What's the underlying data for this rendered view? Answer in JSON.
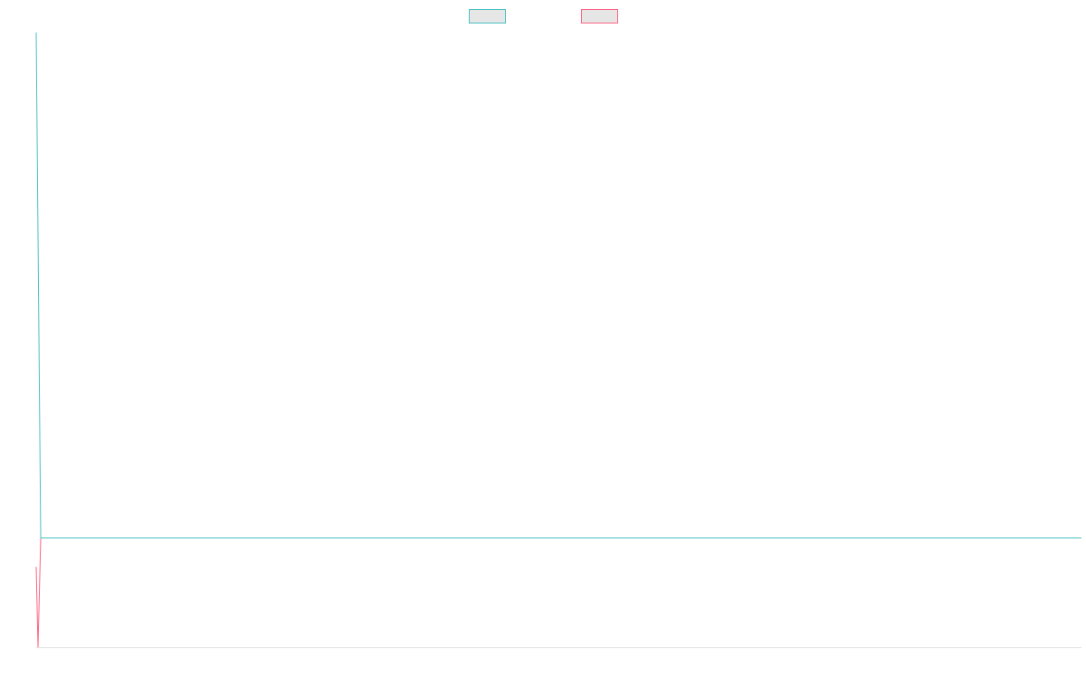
{
  "chart_data": {
    "type": "line",
    "series": [
      {
        "color": "#4bc0c0",
        "x": [
          0,
          1,
          231
        ],
        "values": [
          100,
          17.8,
          17.8
        ]
      },
      {
        "color": "#ff6384",
        "x": [
          0,
          0.4,
          1,
          231
        ],
        "values": [
          13.1,
          0,
          17.8,
          17.8
        ]
      }
    ],
    "xlim": [
      0,
      231
    ],
    "ylim": [
      0,
      100
    ],
    "legend": "top"
  }
}
